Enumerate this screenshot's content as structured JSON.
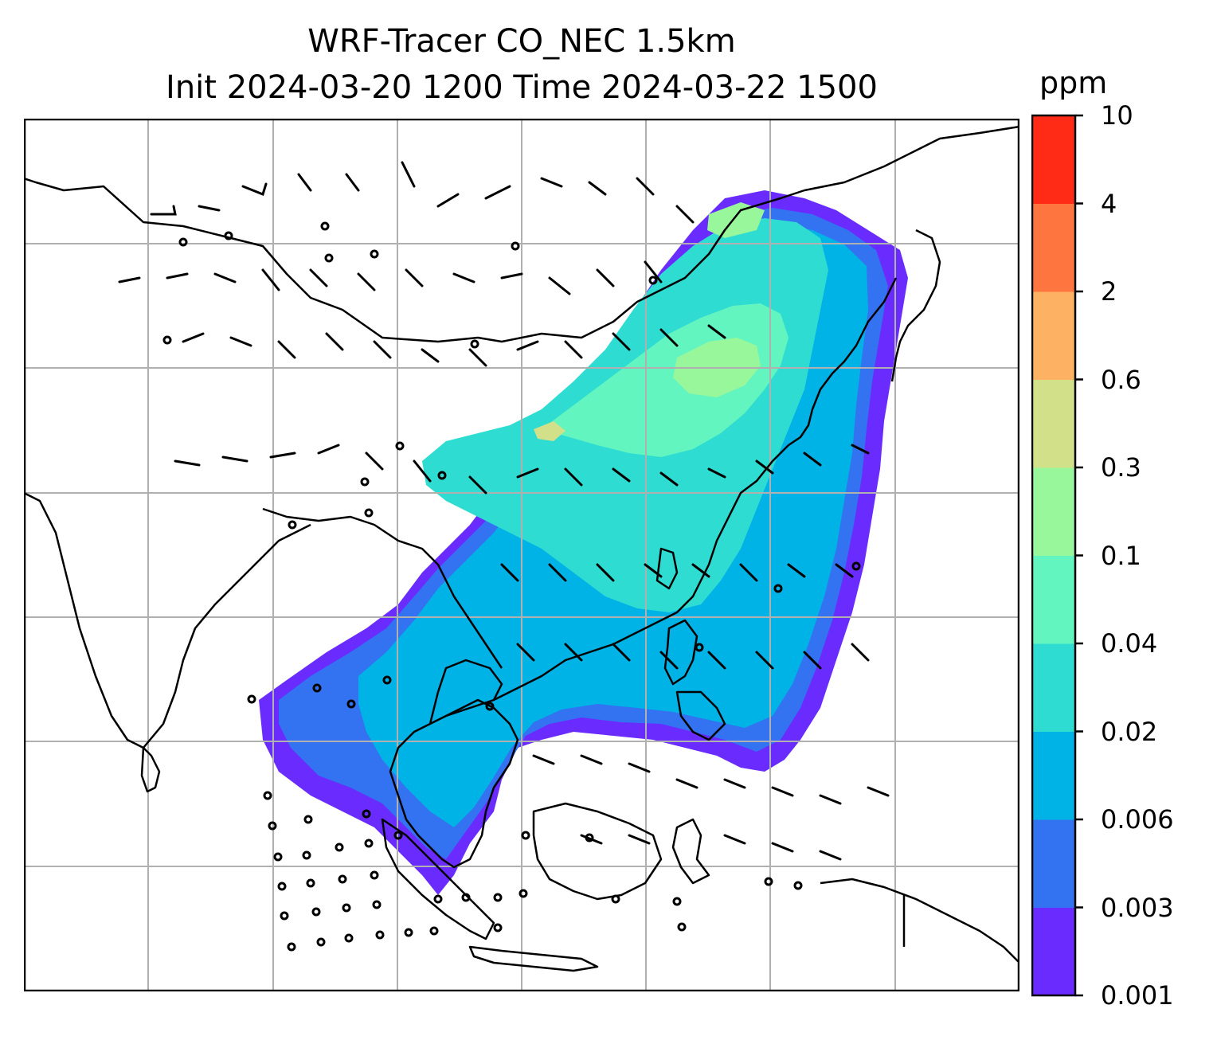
{
  "title": {
    "line1": "WRF-Tracer CO_NEC 1.5km",
    "line2": "Init 2024-03-20 1200 Time 2024-03-22 1500"
  },
  "colorbar": {
    "unit": "ppm",
    "levels": [
      "0.001",
      "0.003",
      "0.006",
      "0.02",
      "0.04",
      "0.1",
      "0.3",
      "0.6",
      "2",
      "4",
      "10"
    ],
    "colors": [
      "#6a2bff",
      "#3372f0",
      "#00b3e6",
      "#2fdcd2",
      "#63f5c0",
      "#98f79b",
      "#d2e08a",
      "#fdb162",
      "#ff7540",
      "#ff2b17"
    ]
  },
  "map": {
    "land_color": "#ffffff",
    "coast_color": "#000000",
    "grid_color": "#b0b0b0",
    "wind_symbols": "barbs"
  }
}
